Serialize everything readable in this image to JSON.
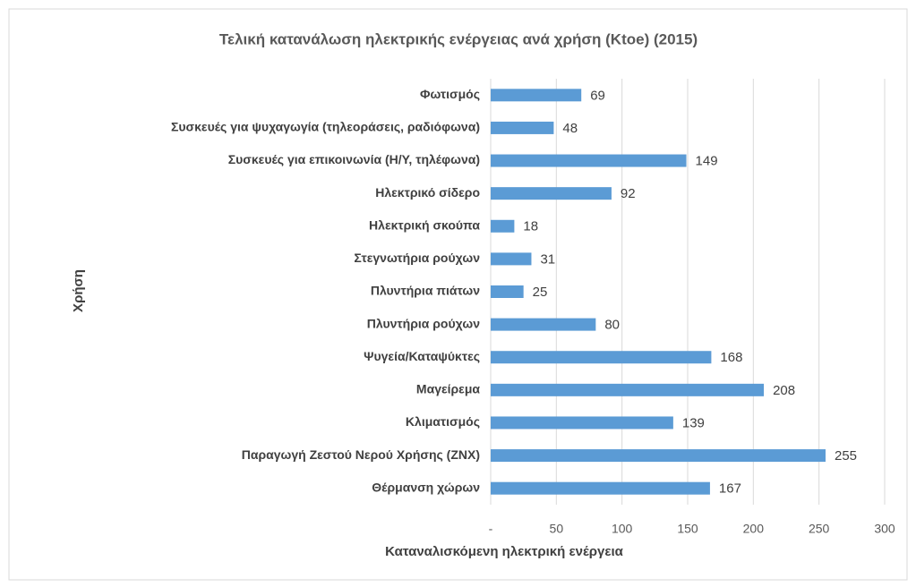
{
  "chart_data": {
    "type": "bar",
    "orientation": "horizontal",
    "title": "Τελική κατανάλωση ηλεκτρικής ενέργειας ανά χρήση (Ktoe) (2015)",
    "x_label": "Καταναλισκόμενη ηλεκτρική ενέργεια",
    "y_label": "Χρήση",
    "categories": [
      "Φωτισμός",
      "Συσκευές για ψυχαγωγία (τηλεοράσεις, ραδιόφωνα)",
      "Συσκευές για επικοινωνία (Η/Υ, τηλέφωνα)",
      "Ηλεκτρικό σίδερο",
      "Ηλεκτρική σκούπα",
      "Στεγνωτήρια ρούχων",
      "Πλυντήρια πιάτων",
      "Πλυντήρια ρούχων",
      "Ψυγεία/Καταψύκτες",
      "Μαγείρεμα",
      "Κλιματισμός",
      "Παραγωγή Ζεστού Νερού Χρήσης (ΖΝΧ)",
      "Θέρμανση χώρων"
    ],
    "values": [
      69,
      48,
      149,
      92,
      18,
      31,
      25,
      80,
      168,
      208,
      139,
      255,
      167
    ],
    "color": "#5b9bd5",
    "xlim": [
      0,
      300
    ],
    "xticks": [
      {
        "value": 0,
        "label": "-"
      },
      50,
      100,
      150,
      200,
      250,
      300
    ],
    "grid": true
  }
}
